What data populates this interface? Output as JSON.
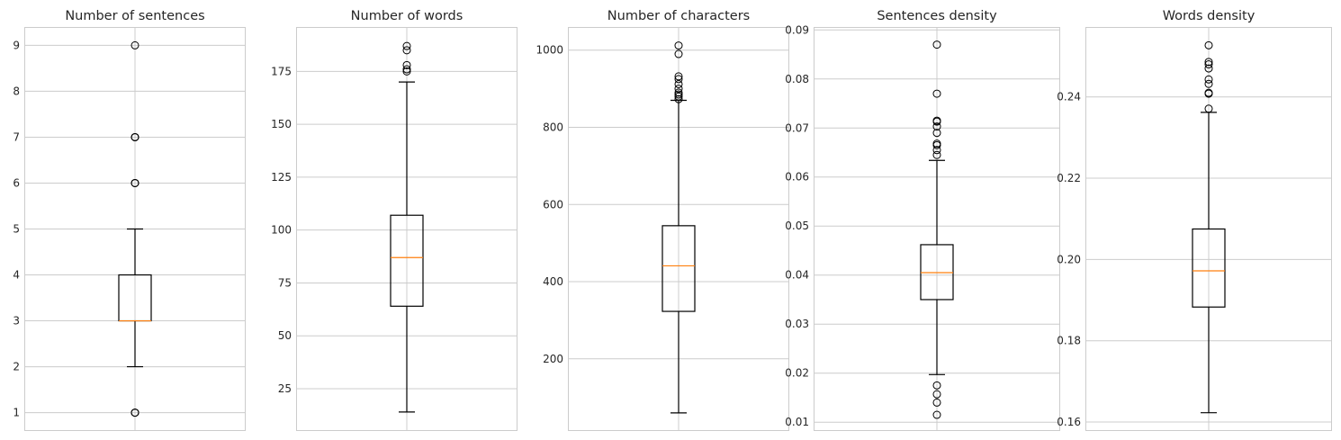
{
  "figure": {
    "background": "#ffffff",
    "grid_color": "#cccccc",
    "box_color": "#000000",
    "median_color": "#ff7f0e"
  },
  "chart_data": [
    {
      "type": "box",
      "title": "Number of sentences",
      "grid": true,
      "ylim": [
        0.6,
        9.4
      ],
      "yticks": [
        1,
        2,
        3,
        4,
        5,
        6,
        7,
        8,
        9
      ],
      "tick_labels": [
        "1",
        "2",
        "3",
        "4",
        "5",
        "6",
        "7",
        "8",
        "9"
      ],
      "box": {
        "whisker_low": 2,
        "q1": 3,
        "median": 3,
        "q3": 4,
        "whisker_high": 5
      },
      "fliers": [
        1,
        1,
        1,
        6,
        6,
        6,
        7,
        7,
        7,
        9
      ]
    },
    {
      "type": "box",
      "title": "Number of words",
      "grid": true,
      "ylim": [
        5,
        196
      ],
      "yticks": [
        25,
        50,
        75,
        100,
        125,
        150,
        175
      ],
      "tick_labels": [
        "25",
        "50",
        "75",
        "100",
        "125",
        "150",
        "175"
      ],
      "box": {
        "whisker_low": 14,
        "q1": 64,
        "median": 87,
        "q3": 107,
        "whisker_high": 170
      },
      "fliers": [
        175,
        176,
        178,
        185,
        187
      ]
    },
    {
      "type": "box",
      "title": "Number of characters",
      "grid": true,
      "ylim": [
        13,
        1060
      ],
      "yticks": [
        200,
        400,
        600,
        800,
        1000
      ],
      "tick_labels": [
        "200",
        "400",
        "600",
        "800",
        "1000"
      ],
      "box": {
        "whisker_low": 60,
        "q1": 323,
        "median": 441,
        "q3": 545,
        "whisker_high": 870
      },
      "fliers": [
        873,
        880,
        885,
        890,
        900,
        912,
        925,
        932,
        990,
        1012
      ]
    },
    {
      "type": "box",
      "title": "Sentences density",
      "grid": true,
      "ylim": [
        0.0082,
        0.0906
      ],
      "yticks": [
        0.01,
        0.02,
        0.03,
        0.04,
        0.05,
        0.06,
        0.07,
        0.08,
        0.09
      ],
      "tick_labels": [
        "0.01",
        "0.02",
        "0.03",
        "0.04",
        "0.05",
        "0.06",
        "0.07",
        "0.08",
        "0.09"
      ],
      "box": {
        "whisker_low": 0.0197,
        "q1": 0.035,
        "median": 0.0405,
        "q3": 0.0462,
        "whisker_high": 0.0634
      },
      "fliers": [
        0.0115,
        0.014,
        0.0157,
        0.0175,
        0.0645,
        0.0655,
        0.0665,
        0.0668,
        0.069,
        0.0703,
        0.0713,
        0.0715,
        0.077,
        0.087
      ]
    },
    {
      "type": "box",
      "title": "Words density",
      "grid": true,
      "ylim": [
        0.1578,
        0.2572
      ],
      "yticks": [
        0.16,
        0.18,
        0.2,
        0.22,
        0.24
      ],
      "tick_labels": [
        "0.16",
        "0.18",
        "0.20",
        "0.22",
        "0.24"
      ],
      "box": {
        "whisker_low": 0.1623,
        "q1": 0.1883,
        "median": 0.1972,
        "q3": 0.2075,
        "whisker_high": 0.2362
      },
      "fliers": [
        0.2371,
        0.2408,
        0.241,
        0.2432,
        0.2443,
        0.247,
        0.248,
        0.2486,
        0.2527
      ]
    }
  ]
}
